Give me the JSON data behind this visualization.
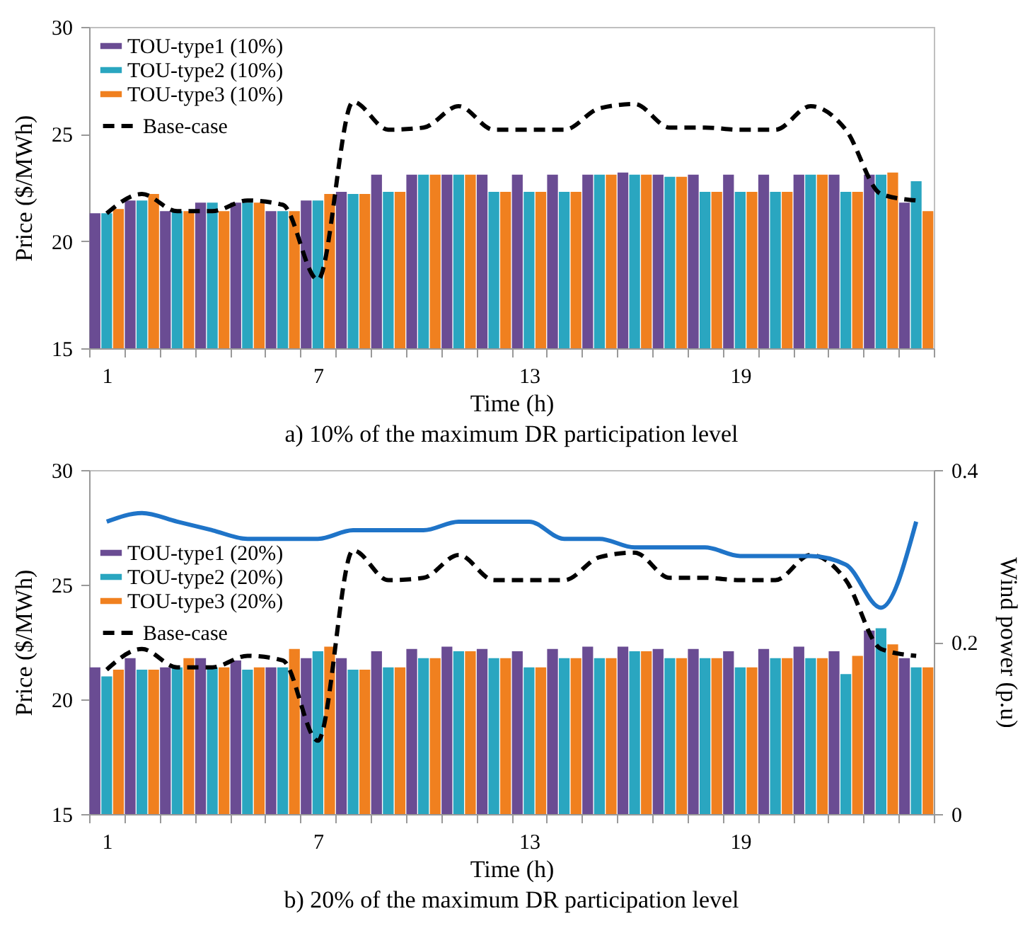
{
  "chart_data": [
    {
      "type": "bar",
      "title": "a) 10% of the maximum DR participation level",
      "xlabel": "Time (h)",
      "ylabel": "Price ($/MWh)",
      "legend": "top left",
      "ylim": [
        15,
        30
      ],
      "yticks": [
        15,
        20,
        25,
        30
      ],
      "categories": [
        "1",
        null,
        null,
        null,
        null,
        null,
        "7",
        null,
        null,
        null,
        null,
        null,
        "13",
        null,
        null,
        null,
        null,
        null,
        "19",
        null,
        null,
        null,
        null,
        null
      ],
      "series": [
        {
          "name": "TOU-type1 (10%)",
          "color": "#6a4c93",
          "values": [
            21.3,
            21.9,
            21.4,
            21.8,
            21.8,
            21.4,
            21.9,
            22.3,
            23.1,
            23.1,
            23.1,
            23.1,
            23.1,
            23.1,
            23.1,
            23.2,
            23.1,
            23.1,
            23.1,
            23.1,
            23.1,
            23.1,
            23.1,
            21.8
          ]
        },
        {
          "name": "TOU-type2 (10%)",
          "color": "#2aa6c0",
          "values": [
            21.3,
            21.9,
            21.4,
            21.8,
            21.8,
            21.4,
            21.9,
            22.2,
            22.3,
            23.1,
            23.1,
            22.3,
            22.3,
            22.3,
            23.1,
            23.1,
            23.0,
            22.3,
            22.3,
            22.3,
            23.1,
            22.3,
            23.1,
            22.8
          ]
        },
        {
          "name": "TOU-type3 (10%)",
          "color": "#f0801f",
          "values": [
            21.5,
            22.2,
            21.4,
            21.4,
            21.8,
            21.4,
            22.2,
            22.2,
            22.3,
            23.1,
            23.1,
            22.3,
            22.3,
            22.3,
            23.1,
            23.1,
            23.0,
            22.3,
            22.3,
            22.3,
            23.1,
            22.3,
            23.2,
            21.4
          ]
        },
        {
          "name": "Base-case",
          "type": "line",
          "line_style": "dashed",
          "color": "#000000",
          "values": [
            21.3,
            22.2,
            21.4,
            21.4,
            21.9,
            21.7,
            18.2,
            26.5,
            25.2,
            25.3,
            26.3,
            25.2,
            25.2,
            25.2,
            26.2,
            26.4,
            25.3,
            25.3,
            25.2,
            25.2,
            26.3,
            25.2,
            22.2,
            21.9
          ]
        }
      ]
    },
    {
      "type": "bar",
      "title": "b) 20% of the maximum DR participation level",
      "xlabel": "Time (h)",
      "ylabel": "Price ($/MWh)",
      "y2label": "Wind power (p.u)",
      "legend": "left",
      "ylim": [
        15,
        30
      ],
      "yticks": [
        15,
        20,
        25,
        30
      ],
      "y2lim": [
        0,
        0.4
      ],
      "y2ticks": [
        0,
        0.2,
        0.4
      ],
      "categories": [
        "1",
        null,
        null,
        null,
        null,
        null,
        "7",
        null,
        null,
        null,
        null,
        null,
        "13",
        null,
        null,
        null,
        null,
        null,
        "19",
        null,
        null,
        null,
        null,
        null
      ],
      "series": [
        {
          "name": "TOU-type1 (20%)",
          "color": "#6a4c93",
          "values": [
            21.4,
            21.8,
            21.4,
            21.8,
            21.7,
            21.4,
            21.8,
            21.8,
            22.1,
            22.2,
            22.3,
            22.2,
            22.1,
            22.2,
            22.3,
            22.3,
            22.2,
            22.2,
            22.1,
            22.2,
            22.3,
            22.1,
            23.0,
            21.8
          ]
        },
        {
          "name": "TOU-type2 (20%)",
          "color": "#2aa6c0",
          "values": [
            21.0,
            21.3,
            21.4,
            21.4,
            21.3,
            21.4,
            22.1,
            21.3,
            21.4,
            21.8,
            22.1,
            21.8,
            21.4,
            21.8,
            21.8,
            22.1,
            21.8,
            21.8,
            21.4,
            21.8,
            21.8,
            21.1,
            23.1,
            21.4
          ]
        },
        {
          "name": "TOU-type3 (20%)",
          "color": "#f0801f",
          "values": [
            21.3,
            21.3,
            21.8,
            21.4,
            21.4,
            22.2,
            22.3,
            21.3,
            21.4,
            21.8,
            22.1,
            21.8,
            21.4,
            21.8,
            21.8,
            22.1,
            21.8,
            21.8,
            21.4,
            21.8,
            21.8,
            21.9,
            22.4,
            21.4
          ]
        },
        {
          "name": "Base-case",
          "type": "line",
          "line_style": "dashed",
          "color": "#000000",
          "values": [
            21.3,
            22.2,
            21.4,
            21.4,
            21.9,
            21.7,
            18.2,
            26.5,
            25.2,
            25.3,
            26.3,
            25.2,
            25.2,
            25.2,
            26.2,
            26.4,
            25.3,
            25.3,
            25.2,
            25.2,
            26.3,
            25.2,
            22.2,
            21.9
          ]
        },
        {
          "type": "line",
          "axis": "y2",
          "line_style": "solid",
          "color": "#1f74c8",
          "values": [
            0.34,
            0.35,
            0.34,
            0.33,
            0.32,
            0.32,
            0.32,
            0.33,
            0.33,
            0.33,
            0.34,
            0.34,
            0.34,
            0.32,
            0.32,
            0.31,
            0.31,
            0.31,
            0.3,
            0.3,
            0.3,
            0.29,
            0.24,
            0.34
          ]
        }
      ]
    }
  ]
}
